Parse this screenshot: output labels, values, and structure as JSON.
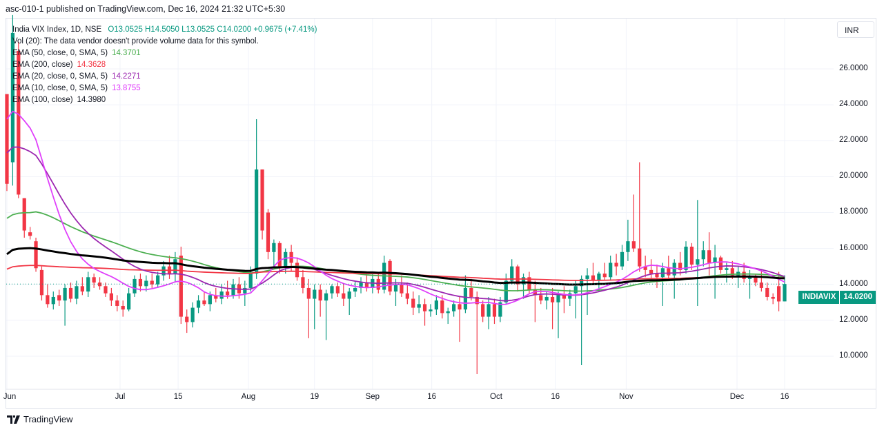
{
  "publisher_line": "asc-010-1 published on TradingView.com, Dec 16, 2024 21:32 UTC+5:30",
  "legend": {
    "symbol": "India VIX Index, 1D, NSE",
    "ohlc": "O13.0525  H14.5050  L13.0525  C14.0200  +0.9675 (+7.41%)",
    "volume": "Vol (20): The data vendor doesn't provide volume data for this symbol.",
    "indicators": [
      {
        "label": "EMA (50, close, 0, SMA, 5)",
        "value": "14.3701",
        "color": "#4caf50"
      },
      {
        "label": "EMA (200, close)",
        "value": "14.3628",
        "color": "#f23645"
      },
      {
        "label": "EMA (20, close, 0, SMA, 5)",
        "value": "14.2271",
        "color": "#9c27b0"
      },
      {
        "label": "EMA (10, close, 0, SMA, 5)",
        "value": "13.8755",
        "color": "#e040fb"
      },
      {
        "label": "EMA (100, close)",
        "value": "14.3980",
        "color": "#131722"
      }
    ]
  },
  "currency_button": "INR",
  "price_tag": {
    "symbol": "INDIAVIX",
    "value": "14.0200"
  },
  "footer_brand": "TradingView",
  "chart_data": {
    "type": "candlestick",
    "title": "India VIX Index, 1D, NSE",
    "ylim": [
      7.5,
      29.5
    ],
    "y_ticks": [
      "10.0000",
      "12.0000",
      "14.0000",
      "16.0000",
      "18.0000",
      "20.0000",
      "22.0000",
      "24.0000",
      "26.0000"
    ],
    "y_tick_values": [
      10,
      12,
      14,
      16,
      18,
      20,
      22,
      24,
      26
    ],
    "x_ticks": [
      {
        "label": "Jun",
        "i": 0
      },
      {
        "label": "Jul",
        "i": 19.5
      },
      {
        "label": "15",
        "i": 29.5
      },
      {
        "label": "Aug",
        "i": 41.6
      },
      {
        "label": "19",
        "i": 53
      },
      {
        "label": "Sep",
        "i": 63
      },
      {
        "label": "16",
        "i": 73.2
      },
      {
        "label": "Oct",
        "i": 84.3
      },
      {
        "label": "16",
        "i": 94.5
      },
      {
        "label": "Nov",
        "i": 106.7
      },
      {
        "label": "Dec",
        "i": 125.8
      },
      {
        "label": "16",
        "i": 134
      }
    ],
    "colors": {
      "up": "#089981",
      "down": "#f23645"
    },
    "ohlc": [
      [
        24.6,
        24.6,
        19.2,
        19.6
      ],
      [
        20.8,
        29,
        19.5,
        28
      ],
      [
        27,
        27.5,
        18.8,
        19
      ],
      [
        18.8,
        18.8,
        16.6,
        17
      ],
      [
        16.9,
        17.2,
        16.5,
        16.7
      ],
      [
        16.4,
        16.6,
        14.7,
        14.9
      ],
      [
        14.8,
        15,
        13.1,
        13.4
      ],
      [
        13.4,
        14,
        12.7,
        12.9
      ],
      [
        12.9,
        13.6,
        12.6,
        13.3
      ],
      [
        13.4,
        13.7,
        12.8,
        13.1
      ],
      [
        13.1,
        14,
        11.7,
        13.8
      ],
      [
        13.8,
        14.1,
        13,
        13.2
      ],
      [
        13.2,
        14.2,
        12.9,
        13.9
      ],
      [
        13.9,
        14.4,
        13.4,
        13.6
      ],
      [
        13.6,
        14.7,
        13.3,
        14.4
      ],
      [
        14.4,
        14.6,
        13.8,
        14.1
      ],
      [
        14.1,
        14.4,
        13.7,
        13.9
      ],
      [
        13.9,
        14.1,
        13.3,
        13.5
      ],
      [
        13.5,
        13.8,
        12.8,
        13.1
      ],
      [
        13.1,
        13.4,
        12.5,
        12.8
      ],
      [
        12.8,
        13.1,
        12.2,
        12.6
      ],
      [
        12.6,
        13.8,
        12.5,
        13.5
      ],
      [
        13.5,
        14.5,
        13.3,
        14.3
      ],
      [
        14.3,
        14.6,
        13.6,
        13.9
      ],
      [
        13.9,
        14.5,
        13.6,
        14.2
      ],
      [
        14.2,
        14.6,
        13.8,
        14.0
      ],
      [
        14,
        14.7,
        13.8,
        14.5
      ],
      [
        14.5,
        15.3,
        14.2,
        15.0
      ],
      [
        15,
        15.6,
        14.3,
        14.6
      ],
      [
        14.6,
        15.8,
        14.1,
        15.4
      ],
      [
        15.6,
        16.1,
        11.8,
        12.2
      ],
      [
        12.2,
        12.6,
        11.3,
        11.9
      ],
      [
        11.9,
        13,
        11.6,
        12.7
      ],
      [
        12.7,
        13.4,
        12.4,
        13.1
      ],
      [
        13.1,
        13.6,
        12.8,
        12.9
      ],
      [
        12.9,
        13.6,
        12.5,
        13.4
      ],
      [
        13.4,
        13.8,
        13,
        13.2
      ],
      [
        13.2,
        14,
        12.9,
        13.6
      ],
      [
        13.6,
        14.2,
        13.2,
        13.4
      ],
      [
        13.4,
        14.3,
        13.2,
        14.0
      ],
      [
        14,
        14.4,
        13.2,
        13.5
      ],
      [
        13.5,
        14.2,
        12.8,
        13.8
      ],
      [
        13.8,
        15,
        13.6,
        14.6
      ],
      [
        14.6,
        23.2,
        14.3,
        20.4
      ],
      [
        20.4,
        20.4,
        16.5,
        17
      ],
      [
        18,
        18.2,
        15.4,
        15.8
      ],
      [
        15.8,
        16.5,
        15,
        16.3
      ],
      [
        16.3,
        16.4,
        14.6,
        15
      ],
      [
        15,
        16,
        14.6,
        15.8
      ],
      [
        15.8,
        16.2,
        14.7,
        15.2
      ],
      [
        15.2,
        15.5,
        14.2,
        14.4
      ],
      [
        14.4,
        14.8,
        13.5,
        13.8
      ],
      [
        13.8,
        14.3,
        11,
        13.2
      ],
      [
        13.2,
        14,
        11.5,
        13.7
      ],
      [
        13.7,
        14,
        12.2,
        13.1
      ],
      [
        13.1,
        13.7,
        10.9,
        13.5
      ],
      [
        13.5,
        14,
        13.2,
        13.9
      ],
      [
        13.9,
        14.1,
        13.3,
        13.5
      ],
      [
        13.5,
        14,
        12.8,
        13.2
      ],
      [
        13.2,
        13.8,
        12.3,
        13.6
      ],
      [
        13.6,
        14.2,
        13.3,
        13.8
      ],
      [
        13.8,
        14.4,
        13.5,
        14.1
      ],
      [
        14.1,
        14.6,
        13.6,
        13.8
      ],
      [
        13.8,
        14.6,
        13.5,
        14.3
      ],
      [
        14.3,
        14.6,
        13.5,
        13.7
      ],
      [
        13.7,
        15.6,
        13.5,
        15.2
      ],
      [
        15.3,
        15.4,
        13.4,
        13.6
      ],
      [
        13.6,
        14.3,
        12.8,
        14.0
      ],
      [
        14,
        14.5,
        13.3,
        13.5
      ],
      [
        13.5,
        14.1,
        12.9,
        13.2
      ],
      [
        13.2,
        13.6,
        12.3,
        12.7
      ],
      [
        12.7,
        13.4,
        12.4,
        12.9
      ],
      [
        12.9,
        13.2,
        11.7,
        12.5
      ],
      [
        12.5,
        12.9,
        12.2,
        12.6
      ],
      [
        12.6,
        13.4,
        12.3,
        13.1
      ],
      [
        13.1,
        13.4,
        12.1,
        12.4
      ],
      [
        12.4,
        12.7,
        11.8,
        12.5
      ],
      [
        12.5,
        13.1,
        12.2,
        12.9
      ],
      [
        12.9,
        13.3,
        10.8,
        12.6
      ],
      [
        12.6,
        14.5,
        12.4,
        13.8
      ],
      [
        13.8,
        14.3,
        13.1,
        13.3
      ],
      [
        13.3,
        13.6,
        9.0,
        12.9
      ],
      [
        12.9,
        13.1,
        11.9,
        12.2
      ],
      [
        12.2,
        13.3,
        11.5,
        12.9
      ],
      [
        12.9,
        13.2,
        11.8,
        12.2
      ],
      [
        12.2,
        13.3,
        11.9,
        13.0
      ],
      [
        13,
        14.6,
        12.9,
        14.2
      ],
      [
        14.2,
        15.4,
        14,
        15.0
      ],
      [
        15,
        15.1,
        13.6,
        14.0
      ],
      [
        14,
        14.6,
        13.2,
        14.4
      ],
      [
        14.4,
        14.7,
        13.5,
        13.7
      ],
      [
        13.7,
        14.2,
        11.9,
        13.4
      ],
      [
        13.4,
        13.8,
        12.9,
        13.1
      ],
      [
        13.1,
        13.6,
        12.6,
        13.3
      ],
      [
        13.3,
        13.8,
        11.5,
        13.0
      ],
      [
        13,
        13.6,
        11,
        13.4
      ],
      [
        13.4,
        13.9,
        12.4,
        13.2
      ],
      [
        13.2,
        13.7,
        12.8,
        13.5
      ],
      [
        13.5,
        14.2,
        12.1,
        13.9
      ],
      [
        13.9,
        14.5,
        9.5,
        14.3
      ],
      [
        14.3,
        14.9,
        12.3,
        14.5
      ],
      [
        14.5,
        15.2,
        14,
        14.2
      ],
      [
        14.2,
        14.7,
        13.6,
        14.6
      ],
      [
        14.6,
        15.2,
        14.2,
        14.4
      ],
      [
        14.4,
        15.6,
        14.2,
        15.2
      ],
      [
        15.2,
        15.7,
        14.5,
        15.0
      ],
      [
        15,
        16.2,
        14.8,
        15.8
      ],
      [
        15.8,
        17.6,
        15.3,
        16.4
      ],
      [
        16.4,
        19,
        15.8,
        16.0
      ],
      [
        16,
        20.8,
        14.7,
        15.0
      ],
      [
        15,
        15.6,
        14.4,
        14.8
      ],
      [
        14.8,
        15.4,
        14.3,
        14.6
      ],
      [
        14.6,
        15.1,
        13.8,
        14.4
      ],
      [
        14.4,
        15.2,
        12.8,
        14.9
      ],
      [
        14.9,
        15.6,
        14.2,
        14.5
      ],
      [
        14.5,
        15.4,
        13.2,
        15.2
      ],
      [
        15.2,
        15.8,
        14.5,
        14.8
      ],
      [
        14.8,
        16.4,
        14.6,
        16.1
      ],
      [
        16.1,
        16.3,
        14.8,
        15.1
      ],
      [
        15.1,
        18.7,
        12.8,
        15.4
      ],
      [
        15.4,
        16.4,
        15,
        15.9
      ],
      [
        15.9,
        16.9,
        14.5,
        15.2
      ],
      [
        15.2,
        16.2,
        13.2,
        15.5
      ],
      [
        15.5,
        15.6,
        14.6,
        14.8
      ],
      [
        14.8,
        15.2,
        14.1,
        14.9
      ],
      [
        14.9,
        15.3,
        14.3,
        14.5
      ],
      [
        14.5,
        15,
        13.8,
        14.7
      ],
      [
        14.7,
        15.2,
        14.1,
        14.3
      ],
      [
        14.3,
        14.8,
        13.2,
        14.4
      ],
      [
        14.4,
        14.6,
        13.9,
        14.1
      ],
      [
        14.1,
        14.8,
        13.6,
        13.8
      ],
      [
        13.8,
        14.1,
        13.1,
        13.3
      ],
      [
        13.3,
        13.5,
        12.9,
        13.2
      ],
      [
        13.9,
        14.7,
        12.5,
        13.05
      ],
      [
        13.0525,
        14.505,
        13.0525,
        14.02
      ]
    ],
    "ema": [
      {
        "name": "EMA 50",
        "period": 50,
        "smooth": 5,
        "seed": 17.6,
        "color": "#4caf50"
      },
      {
        "name": "EMA 200",
        "period": 200,
        "smooth": 1,
        "seed": 14.8,
        "color": "#f23645"
      },
      {
        "name": "EMA 20",
        "period": 20,
        "smooth": 5,
        "seed": 21.5,
        "color": "#9c27b0"
      },
      {
        "name": "EMA 10",
        "period": 10,
        "smooth": 5,
        "seed": 24,
        "color": "#e040fb"
      },
      {
        "name": "EMA 100",
        "period": 100,
        "smooth": 1,
        "seed": 15.6,
        "color": "#000000"
      }
    ],
    "last_price": 14.02
  }
}
